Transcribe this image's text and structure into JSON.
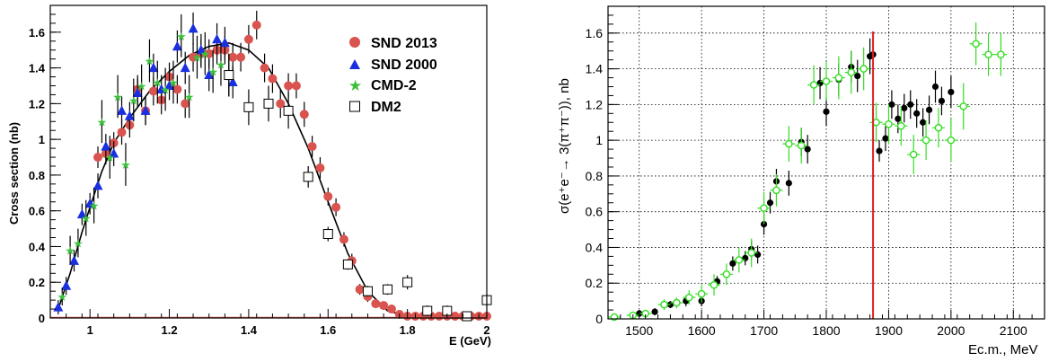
{
  "chart_data": [
    {
      "type": "scatter",
      "xlabel": "E (GeV)",
      "ylabel": "Cross section (nb)",
      "xlim": [
        0.9,
        2.0
      ],
      "ylim": [
        0,
        1.75
      ],
      "x_ticks": [
        "1",
        "1.2",
        "1.4",
        "1.6",
        "1.8",
        "2"
      ],
      "y_ticks": [
        "0",
        "0.2",
        "0.4",
        "0.6",
        "0.8",
        "1",
        "1.2",
        "1.4",
        "1.6"
      ],
      "grid": false,
      "legend_position": "top-right",
      "series": [
        {
          "name": "SND 2013",
          "marker": "circle",
          "color": "#d9534f",
          "x": [
            1.02,
            1.04,
            1.06,
            1.08,
            1.1,
            1.12,
            1.14,
            1.16,
            1.18,
            1.2,
            1.22,
            1.24,
            1.26,
            1.28,
            1.3,
            1.32,
            1.34,
            1.36,
            1.38,
            1.4,
            1.42,
            1.44,
            1.46,
            1.48,
            1.5,
            1.52,
            1.54,
            1.56,
            1.58,
            1.6,
            1.62,
            1.64,
            1.66,
            1.68,
            1.7,
            1.72,
            1.74,
            1.76,
            1.78,
            1.8,
            1.82,
            1.84,
            1.86,
            1.88,
            1.9,
            1.92,
            1.94,
            1.96,
            1.98,
            2.0
          ],
          "y": [
            0.9,
            0.92,
            0.98,
            1.04,
            1.08,
            1.28,
            1.16,
            1.27,
            1.22,
            1.35,
            1.28,
            1.2,
            1.46,
            1.48,
            1.48,
            1.5,
            1.5,
            1.46,
            1.46,
            1.56,
            1.64,
            1.4,
            1.34,
            1.2,
            1.3,
            1.3,
            1.14,
            0.96,
            0.84,
            0.68,
            0.62,
            0.44,
            0.32,
            0.16,
            0.12,
            0.08,
            0.07,
            0.05,
            0.02,
            0.01,
            0.01,
            0.01,
            0.01,
            0.01,
            0.01,
            0.01,
            0.01,
            0.01,
            0.01,
            0.01
          ],
          "err": [
            0.06,
            0.06,
            0.06,
            0.07,
            0.07,
            0.08,
            0.08,
            0.08,
            0.08,
            0.08,
            0.08,
            0.08,
            0.08,
            0.08,
            0.08,
            0.08,
            0.08,
            0.08,
            0.08,
            0.08,
            0.08,
            0.08,
            0.08,
            0.08,
            0.07,
            0.07,
            0.07,
            0.06,
            0.06,
            0.05,
            0.05,
            0.04,
            0.04,
            0.03,
            0.03,
            0.02,
            0.02,
            0.02,
            0.02,
            0.01,
            0.01,
            0.01,
            0.01,
            0.01,
            0.01,
            0.01,
            0.01,
            0.01,
            0.01,
            0.01
          ]
        },
        {
          "name": "SND 2000",
          "marker": "triangle",
          "color": "#1a2fe0",
          "x": [
            0.92,
            0.94,
            0.96,
            0.98,
            1.0,
            1.02,
            1.04,
            1.06,
            1.08,
            1.1,
            1.12,
            1.14,
            1.16,
            1.18,
            1.2,
            1.22,
            1.24,
            1.26,
            1.28,
            1.3,
            1.32,
            1.34,
            1.36
          ],
          "y": [
            0.06,
            0.18,
            0.32,
            0.58,
            0.64,
            0.74,
            0.96,
            0.92,
            1.16,
            1.13,
            1.26,
            1.16,
            1.4,
            1.28,
            1.3,
            1.52,
            1.4,
            1.62,
            1.5,
            1.36,
            1.56,
            1.54,
            1.32
          ],
          "err": [
            0.04,
            0.05,
            0.06,
            0.06,
            0.06,
            0.07,
            0.07,
            0.07,
            0.08,
            0.08,
            0.08,
            0.08,
            0.08,
            0.08,
            0.08,
            0.09,
            0.09,
            0.09,
            0.09,
            0.09,
            0.09,
            0.09,
            0.09
          ]
        },
        {
          "name": "CMD-2",
          "marker": "star",
          "color": "#3cbf3c",
          "x": [
            0.93,
            0.95,
            0.97,
            0.99,
            1.01,
            1.03,
            1.05,
            1.07,
            1.09,
            1.11,
            1.13,
            1.15,
            1.17,
            1.19,
            1.21,
            1.23,
            1.25,
            1.27,
            1.29,
            1.31,
            1.33,
            1.35
          ],
          "y": [
            0.12,
            0.38,
            0.42,
            0.56,
            0.63,
            1.1,
            0.9,
            1.24,
            0.86,
            1.22,
            1.3,
            1.44,
            1.32,
            1.28,
            1.32,
            1.58,
            1.24,
            1.46,
            1.48,
            1.38,
            1.42,
            1.36
          ],
          "err": [
            0.05,
            0.08,
            0.08,
            0.1,
            0.1,
            0.12,
            0.12,
            0.12,
            0.12,
            0.12,
            0.12,
            0.12,
            0.12,
            0.12,
            0.12,
            0.12,
            0.12,
            0.12,
            0.12,
            0.12,
            0.12,
            0.12
          ]
        },
        {
          "name": "DM2",
          "marker": "open-square",
          "color": "#000000",
          "x": [
            1.35,
            1.4,
            1.45,
            1.5,
            1.55,
            1.6,
            1.65,
            1.7,
            1.75,
            1.8,
            1.85,
            1.9,
            1.95,
            2.0
          ],
          "y": [
            1.36,
            1.18,
            1.2,
            1.16,
            0.79,
            0.47,
            0.3,
            0.15,
            0.16,
            0.2,
            0.04,
            0.04,
            0.01,
            0.1
          ],
          "err": [
            0.12,
            0.1,
            0.1,
            0.1,
            0.06,
            0.04,
            0.03,
            0.03,
            0.03,
            0.04,
            0.03,
            0.03,
            0.02,
            0.03
          ]
        }
      ],
      "fit_curve": {
        "color": "#000000",
        "x": [
          0.92,
          0.95,
          0.98,
          1.0,
          1.03,
          1.06,
          1.1,
          1.15,
          1.2,
          1.25,
          1.3,
          1.35,
          1.4,
          1.45,
          1.5,
          1.55,
          1.6,
          1.65,
          1.7,
          1.75,
          1.8,
          1.9,
          2.0
        ],
        "y": [
          0.05,
          0.25,
          0.48,
          0.62,
          0.82,
          0.98,
          1.12,
          1.27,
          1.38,
          1.47,
          1.52,
          1.54,
          1.5,
          1.4,
          1.2,
          0.95,
          0.65,
          0.36,
          0.15,
          0.04,
          0.01,
          0.0,
          0.0
        ]
      }
    },
    {
      "type": "scatter",
      "xlabel": "Ec.m., MeV",
      "ylabel": "σ(e⁺e⁻→ 3(π⁺π⁻)), nb",
      "xlim": [
        1450,
        2150
      ],
      "ylim": [
        0,
        1.75
      ],
      "x_ticks": [
        "1500",
        "1600",
        "1700",
        "1800",
        "1900",
        "2000",
        "2100"
      ],
      "y_ticks": [
        "0",
        "0.2",
        "0.4",
        "0.6",
        "0.8",
        "1",
        "1.2",
        "1.4",
        "1.6"
      ],
      "grid": true,
      "vertical_line": {
        "x": 1875,
        "color": "#e02020"
      },
      "series": [
        {
          "marker": "filled-circle",
          "color": "#000000",
          "x": [
            1500,
            1525,
            1550,
            1575,
            1600,
            1625,
            1650,
            1670,
            1680,
            1690,
            1700,
            1710,
            1720,
            1740,
            1760,
            1770,
            1790,
            1800,
            1820,
            1840,
            1850,
            1870,
            1875,
            1885,
            1895,
            1905,
            1915,
            1925,
            1935,
            1945,
            1955,
            1965,
            1975,
            1985,
            2000
          ],
          "y": [
            0.03,
            0.04,
            0.08,
            0.1,
            0.1,
            0.21,
            0.31,
            0.34,
            0.39,
            0.36,
            0.53,
            0.65,
            0.77,
            0.76,
            0.99,
            0.95,
            1.32,
            1.16,
            1.34,
            1.41,
            1.36,
            1.47,
            1.48,
            0.94,
            1.01,
            1.2,
            1.12,
            1.18,
            1.2,
            1.15,
            1.1,
            1.17,
            1.3,
            1.22,
            1.27
          ],
          "err": [
            0.02,
            0.02,
            0.02,
            0.03,
            0.03,
            0.03,
            0.04,
            0.04,
            0.05,
            0.05,
            0.06,
            0.06,
            0.07,
            0.07,
            0.08,
            0.08,
            0.09,
            0.08,
            0.09,
            0.09,
            0.09,
            0.1,
            0.1,
            0.06,
            0.07,
            0.08,
            0.08,
            0.08,
            0.08,
            0.08,
            0.08,
            0.08,
            0.09,
            0.08,
            0.09
          ]
        },
        {
          "marker": "open-circle",
          "color": "#33dd22",
          "x": [
            1460,
            1490,
            1510,
            1540,
            1560,
            1580,
            1600,
            1620,
            1640,
            1660,
            1680,
            1700,
            1720,
            1740,
            1760,
            1780,
            1800,
            1820,
            1840,
            1860,
            1880,
            1900,
            1920,
            1940,
            1960,
            1980,
            2000,
            2020,
            2040,
            2060,
            2080
          ],
          "y": [
            0.01,
            0.02,
            0.03,
            0.08,
            0.09,
            0.12,
            0.14,
            0.19,
            0.25,
            0.33,
            0.37,
            0.62,
            0.72,
            0.98,
            0.97,
            1.31,
            1.33,
            1.35,
            1.38,
            1.4,
            1.1,
            1.09,
            1.08,
            0.92,
            1.0,
            1.07,
            1.0,
            1.19,
            1.54,
            1.48,
            1.48
          ],
          "err": [
            0.01,
            0.02,
            0.02,
            0.03,
            0.03,
            0.04,
            0.05,
            0.06,
            0.06,
            0.07,
            0.08,
            0.09,
            0.09,
            0.1,
            0.1,
            0.11,
            0.11,
            0.12,
            0.12,
            0.12,
            0.11,
            0.11,
            0.11,
            0.11,
            0.11,
            0.11,
            0.12,
            0.13,
            0.12,
            0.12,
            0.12
          ]
        }
      ]
    }
  ]
}
